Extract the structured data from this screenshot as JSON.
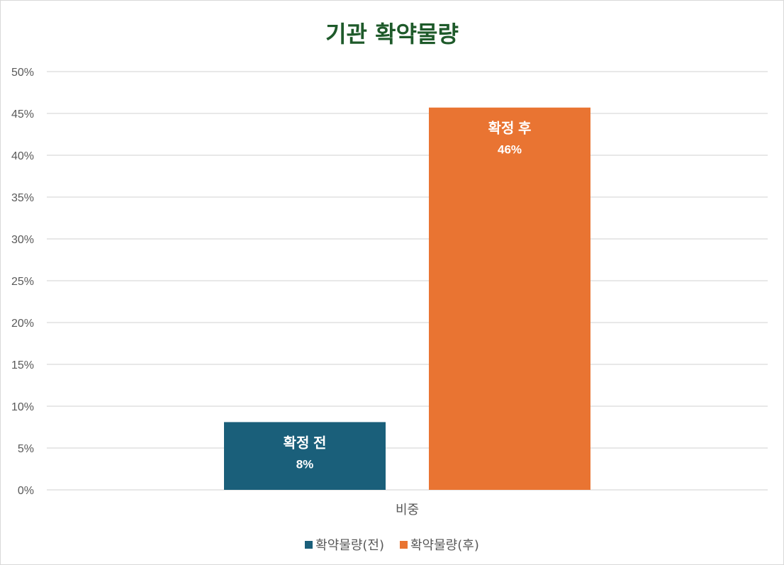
{
  "chart_data": {
    "type": "bar",
    "title": "기관 확약물량",
    "categories": [
      "비중"
    ],
    "ylim": [
      0,
      50
    ],
    "ytick_step": 5,
    "y_format": "percent",
    "grid": true,
    "legend_position": "bottom",
    "series": [
      {
        "name": "확약물량(전)",
        "values": [
          8.1
        ],
        "bar_label": "확정 전",
        "value_label": "8%",
        "color": "#1a5f7a"
      },
      {
        "name": "확약물량(후)",
        "values": [
          45.7
        ],
        "bar_label": "확정 후",
        "value_label": "46%",
        "color": "#e97432"
      }
    ]
  }
}
